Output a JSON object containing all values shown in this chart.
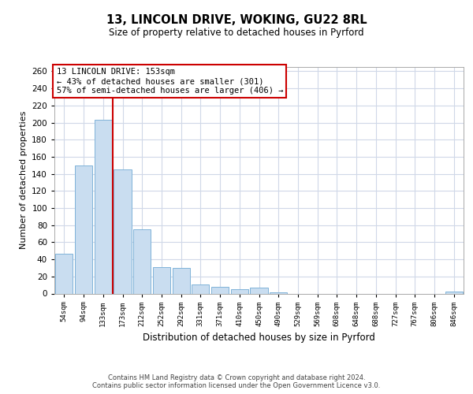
{
  "title": "13, LINCOLN DRIVE, WOKING, GU22 8RL",
  "subtitle": "Size of property relative to detached houses in Pyrford",
  "xlabel": "Distribution of detached houses by size in Pyrford",
  "ylabel": "Number of detached properties",
  "bin_labels": [
    "54sqm",
    "94sqm",
    "133sqm",
    "173sqm",
    "212sqm",
    "252sqm",
    "292sqm",
    "331sqm",
    "371sqm",
    "410sqm",
    "450sqm",
    "490sqm",
    "529sqm",
    "569sqm",
    "608sqm",
    "648sqm",
    "688sqm",
    "727sqm",
    "767sqm",
    "806sqm",
    "846sqm"
  ],
  "bar_values": [
    47,
    150,
    203,
    145,
    75,
    31,
    30,
    11,
    8,
    5,
    7,
    1,
    0,
    0,
    0,
    0,
    0,
    0,
    0,
    0,
    2
  ],
  "bar_color": "#c9ddf0",
  "bar_edge_color": "#7fb3d9",
  "marker_line_color": "#cc0000",
  "annotation_text": "13 LINCOLN DRIVE: 153sqm\n← 43% of detached houses are smaller (301)\n57% of semi-detached houses are larger (406) →",
  "annotation_box_color": "#ffffff",
  "annotation_box_edge_color": "#cc0000",
  "ylim": [
    0,
    265
  ],
  "yticks": [
    0,
    20,
    40,
    60,
    80,
    100,
    120,
    140,
    160,
    180,
    200,
    220,
    240,
    260
  ],
  "footer_text": "Contains HM Land Registry data © Crown copyright and database right 2024.\nContains public sector information licensed under the Open Government Licence v3.0.",
  "background_color": "#ffffff",
  "grid_color": "#d0d8e8"
}
